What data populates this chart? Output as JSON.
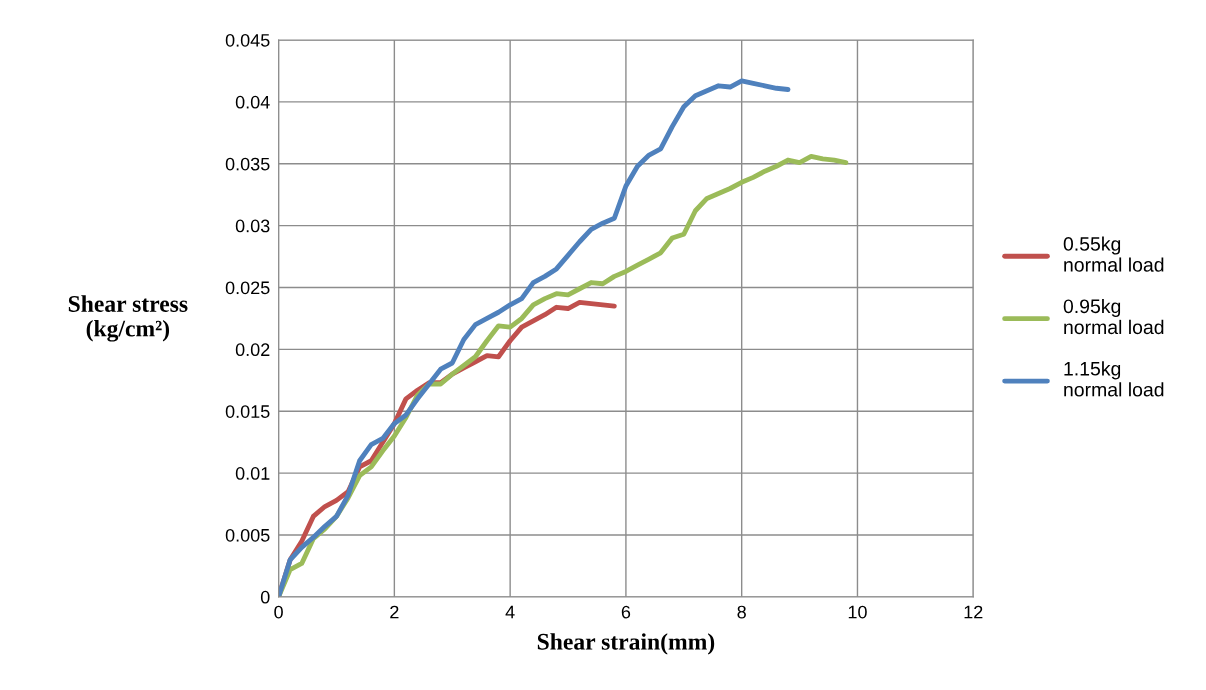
{
  "chart_data": {
    "type": "line",
    "xlabel": "Shear strain(mm)",
    "ylabel": "Shear stress\n(kg/cm²)",
    "xlim": [
      0,
      12
    ],
    "xticks": [
      0,
      2,
      4,
      6,
      8,
      10,
      12
    ],
    "ylim": [
      0,
      0.045
    ],
    "yticks": [
      0,
      0.005,
      0.01,
      0.015,
      0.02,
      0.025,
      0.03,
      0.035,
      0.04,
      0.045
    ],
    "grid": true,
    "legend": "right",
    "marker": "none",
    "line_style": "solid",
    "series": [
      {
        "name": "0.55kg\nnormal load",
        "color": "#c0504d",
        "x": [
          0,
          0.2,
          0.4,
          0.6,
          0.8,
          1.0,
          1.2,
          1.4,
          1.6,
          1.8,
          2.0,
          2.2,
          2.4,
          2.6,
          2.8,
          3.0,
          3.2,
          3.4,
          3.6,
          3.8,
          4.0,
          4.2,
          4.4,
          4.6,
          4.8,
          5.0,
          5.2,
          5.4,
          5.6,
          5.8
        ],
        "values": [
          0,
          0.003,
          0.0045,
          0.0065,
          0.0073,
          0.0078,
          0.0085,
          0.0105,
          0.011,
          0.0125,
          0.014,
          0.016,
          0.0167,
          0.0173,
          0.0173,
          0.018,
          0.0185,
          0.019,
          0.0195,
          0.0194,
          0.0207,
          0.0218,
          0.0223,
          0.0228,
          0.0234,
          0.0233,
          0.0238,
          0.0237,
          0.0236,
          0.0235
        ]
      },
      {
        "name": "0.95kg\nnormal load",
        "color": "#9bbb59",
        "x": [
          0,
          0.2,
          0.4,
          0.6,
          0.8,
          1.0,
          1.2,
          1.4,
          1.6,
          1.8,
          2.0,
          2.2,
          2.4,
          2.6,
          2.8,
          3.0,
          3.2,
          3.4,
          3.6,
          3.8,
          4.0,
          4.2,
          4.4,
          4.6,
          4.8,
          5.0,
          5.2,
          5.4,
          5.6,
          5.8,
          6.0,
          6.2,
          6.4,
          6.6,
          6.8,
          7.0,
          7.2,
          7.4,
          7.6,
          7.8,
          8.0,
          8.2,
          8.4,
          8.6,
          8.8,
          9.0,
          9.2,
          9.4,
          9.6,
          9.8
        ],
        "values": [
          0,
          0.0022,
          0.0027,
          0.0047,
          0.0055,
          0.0065,
          0.008,
          0.0098,
          0.0105,
          0.0118,
          0.013,
          0.0145,
          0.0163,
          0.0172,
          0.0172,
          0.018,
          0.0187,
          0.0194,
          0.0207,
          0.0219,
          0.0218,
          0.0225,
          0.0236,
          0.0241,
          0.0245,
          0.0244,
          0.0249,
          0.0254,
          0.0253,
          0.0259,
          0.0263,
          0.0268,
          0.0273,
          0.0278,
          0.029,
          0.0293,
          0.0312,
          0.0322,
          0.0326,
          0.033,
          0.0335,
          0.0339,
          0.0344,
          0.0348,
          0.0353,
          0.0351,
          0.0356,
          0.0354,
          0.0353,
          0.0351
        ]
      },
      {
        "name": "1.15kg\nnormal load",
        "color": "#4f81bd",
        "x": [
          0,
          0.2,
          0.4,
          0.6,
          0.8,
          1.0,
          1.2,
          1.4,
          1.6,
          1.8,
          2.0,
          2.2,
          2.4,
          2.6,
          2.8,
          3.0,
          3.2,
          3.4,
          3.6,
          3.8,
          4.0,
          4.2,
          4.4,
          4.6,
          4.8,
          5.0,
          5.2,
          5.4,
          5.6,
          5.8,
          6.0,
          6.2,
          6.4,
          6.6,
          6.8,
          7.0,
          7.2,
          7.4,
          7.6,
          7.8,
          8.0,
          8.2,
          8.4,
          8.6,
          8.8
        ],
        "values": [
          0,
          0.003,
          0.004,
          0.0048,
          0.0057,
          0.0065,
          0.0082,
          0.011,
          0.0123,
          0.0128,
          0.014,
          0.0147,
          0.016,
          0.0172,
          0.0184,
          0.0189,
          0.0208,
          0.022,
          0.0225,
          0.023,
          0.0236,
          0.0241,
          0.0254,
          0.0259,
          0.0265,
          0.0276,
          0.0287,
          0.0297,
          0.0302,
          0.0306,
          0.0332,
          0.0348,
          0.0357,
          0.0362,
          0.038,
          0.0396,
          0.0405,
          0.0409,
          0.0413,
          0.0412,
          0.0417,
          0.0415,
          0.0413,
          0.0411,
          0.041
        ]
      }
    ]
  }
}
